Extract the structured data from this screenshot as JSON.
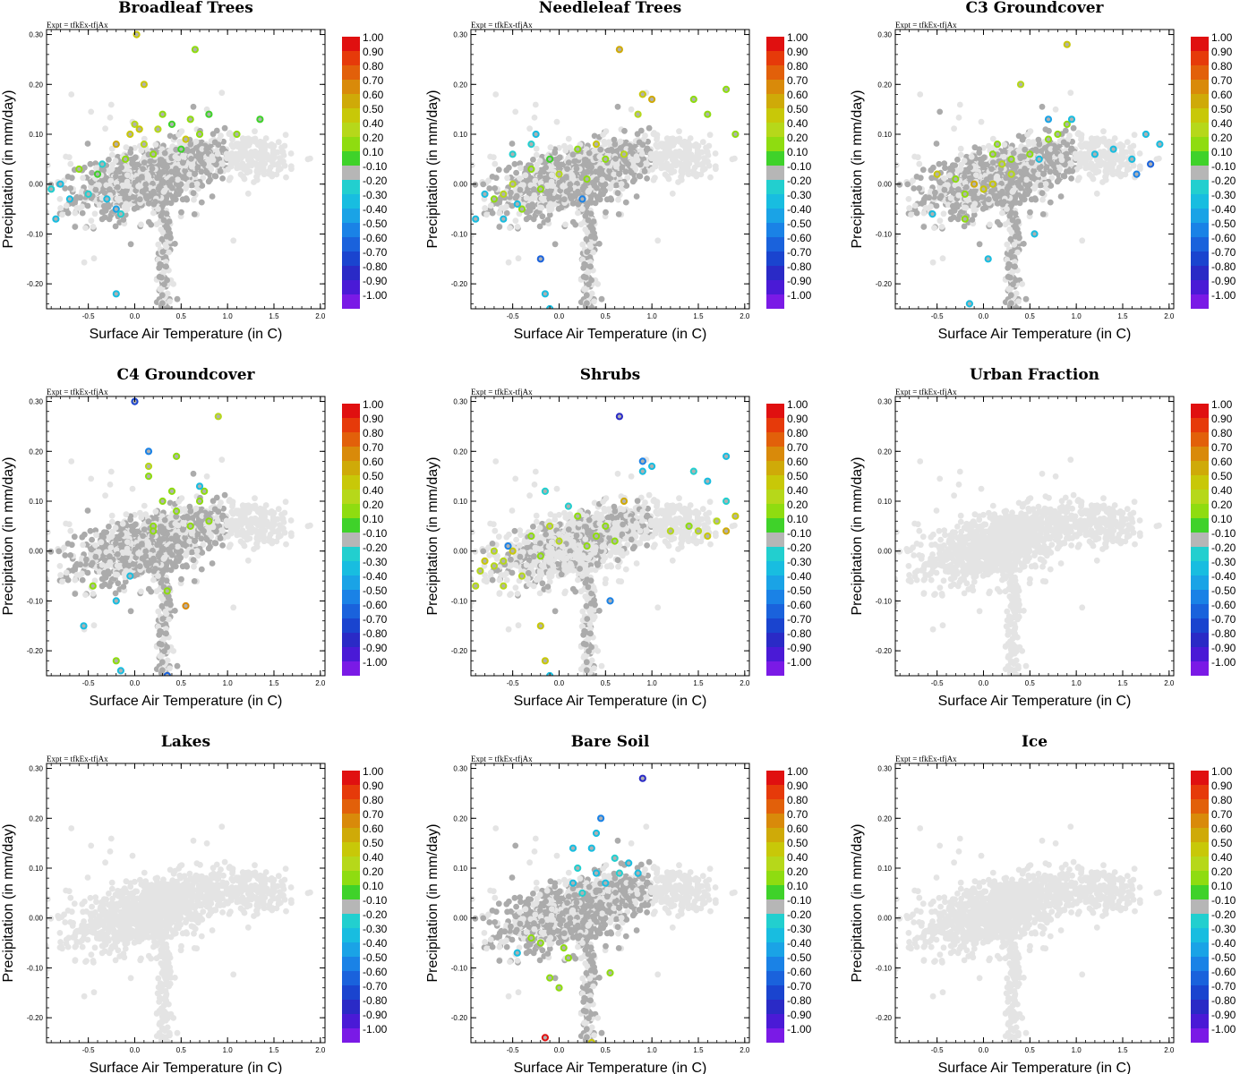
{
  "expt_label": "Expt = tfkEx-tfjAx",
  "colorbar": {
    "labels": [
      "1.00",
      "0.90",
      "0.80",
      "0.70",
      "0.60",
      "0.50",
      "0.40",
      "0.20",
      "0.10",
      "-0.10",
      "-0.20",
      "-0.30",
      "-0.40",
      "-0.50",
      "-0.60",
      "-0.70",
      "-0.80",
      "-0.90",
      "-1.00"
    ],
    "colors": [
      "#e01010",
      "#e63a0a",
      "#e2600a",
      "#d98a0a",
      "#cfaa08",
      "#c8c808",
      "#b6d81a",
      "#8fdc10",
      "#3fd22a",
      "#b6b6b6",
      "#22cfcf",
      "#18bde0",
      "#1aa3e6",
      "#1a82e6",
      "#1a62dc",
      "#1a44cf",
      "#2a2ac6",
      "#4a1ad6",
      "#7a1ae6"
    ]
  },
  "chart_data": [
    {
      "type": "scatter",
      "title": "Broadleaf Trees",
      "xlabel": "Surface Air Temperature (in C)",
      "ylabel": "Precipitation (in mm/day)",
      "xlim": [
        -0.95,
        2.05
      ],
      "ylim": [
        -0.25,
        0.31
      ],
      "xticks": [
        "-0.5",
        "0.0",
        "0.5",
        "1.0",
        "1.5",
        "2.0"
      ],
      "yticks": [
        "0.30",
        "0.20",
        "0.10",
        "0.00",
        "-0.10",
        "-0.20"
      ],
      "color_scale": [
        -1,
        1
      ],
      "points": [
        [
          0.02,
          0.3,
          0.5
        ],
        [
          0.65,
          0.27,
          0.15
        ],
        [
          0.1,
          0.2,
          0.5
        ],
        [
          0.0,
          0.12,
          0.4
        ],
        [
          0.05,
          0.11,
          0.45
        ],
        [
          -0.05,
          0.1,
          0.5
        ],
        [
          -0.2,
          0.08,
          0.55
        ],
        [
          0.1,
          0.08,
          0.3
        ],
        [
          0.3,
          0.14,
          0.15
        ],
        [
          0.4,
          0.12,
          0.12
        ],
        [
          0.6,
          0.13,
          0.15
        ],
        [
          0.7,
          0.1,
          0.2
        ],
        [
          0.8,
          0.14,
          0.12
        ],
        [
          1.1,
          0.1,
          0.15
        ],
        [
          1.35,
          0.13,
          0.12
        ],
        [
          -0.1,
          0.05,
          0.2
        ],
        [
          0.2,
          0.06,
          0.15
        ],
        [
          0.5,
          0.07,
          0.12
        ],
        [
          -0.6,
          0.03,
          0.15
        ],
        [
          -0.4,
          0.02,
          0.12
        ],
        [
          -0.8,
          0.0,
          -0.25
        ],
        [
          -0.9,
          -0.01,
          -0.2
        ],
        [
          -0.7,
          -0.03,
          -0.3
        ],
        [
          -0.5,
          -0.02,
          -0.2
        ],
        [
          -0.3,
          -0.03,
          -0.25
        ],
        [
          -0.2,
          -0.05,
          -0.35
        ],
        [
          -0.85,
          -0.07,
          -0.3
        ],
        [
          -0.15,
          -0.06,
          -0.2
        ],
        [
          -0.2,
          -0.22,
          -0.25
        ],
        [
          -0.35,
          0.04,
          -0.2
        ],
        [
          0.55,
          0.09,
          0.5
        ],
        [
          0.25,
          0.11,
          0.3
        ]
      ]
    },
    {
      "type": "scatter",
      "title": "Needleleaf Trees",
      "xlabel": "Surface Air Temperature (in C)",
      "ylabel": "Precipitation (in mm/day)",
      "xlim": [
        -0.95,
        2.05
      ],
      "ylim": [
        -0.25,
        0.31
      ],
      "xticks": [
        "-0.5",
        "0.0",
        "0.5",
        "1.0",
        "1.5",
        "2.0"
      ],
      "yticks": [
        "0.30",
        "0.20",
        "0.10",
        "0.00",
        "-0.10",
        "-0.20"
      ],
      "color_scale": [
        -1,
        1
      ],
      "points": [
        [
          0.65,
          0.27,
          0.6
        ],
        [
          0.9,
          0.18,
          0.5
        ],
        [
          1.0,
          0.17,
          0.6
        ],
        [
          0.85,
          0.14,
          0.4
        ],
        [
          1.45,
          0.17,
          0.15
        ],
        [
          1.8,
          0.19,
          0.15
        ],
        [
          1.6,
          0.14,
          0.15
        ],
        [
          1.9,
          0.1,
          0.15
        ],
        [
          0.2,
          0.07,
          0.15
        ],
        [
          0.5,
          0.05,
          0.2
        ],
        [
          -0.1,
          0.05,
          0.12
        ],
        [
          -0.3,
          0.03,
          0.2
        ],
        [
          -0.5,
          0.0,
          0.3
        ],
        [
          -0.7,
          -0.03,
          0.15
        ],
        [
          -0.2,
          -0.01,
          0.25
        ],
        [
          -0.4,
          -0.05,
          0.2
        ],
        [
          -0.6,
          -0.02,
          0.4
        ],
        [
          0.0,
          0.02,
          0.3
        ],
        [
          0.3,
          0.01,
          0.2
        ],
        [
          -0.8,
          -0.02,
          -0.25
        ],
        [
          -0.9,
          -0.07,
          -0.3
        ],
        [
          -0.6,
          -0.07,
          -0.25
        ],
        [
          -0.3,
          0.08,
          -0.2
        ],
        [
          -0.25,
          0.1,
          -0.25
        ],
        [
          -0.5,
          0.06,
          -0.2
        ],
        [
          -0.2,
          -0.15,
          -0.6
        ],
        [
          -0.15,
          -0.22,
          -0.3
        ],
        [
          -0.1,
          -0.25,
          -0.25
        ],
        [
          0.25,
          -0.03,
          -0.45
        ],
        [
          0.7,
          0.06,
          0.4
        ],
        [
          0.4,
          0.08,
          0.5
        ],
        [
          -0.45,
          -0.04,
          -0.3
        ]
      ]
    },
    {
      "type": "scatter",
      "title": "C3 Groundcover",
      "xlabel": "Surface Air Temperature (in C)",
      "ylabel": "Precipitation (in mm/day)",
      "xlim": [
        -0.95,
        2.05
      ],
      "ylim": [
        -0.25,
        0.31
      ],
      "xticks": [
        "-0.5",
        "0.0",
        "0.5",
        "1.0",
        "1.5",
        "2.0"
      ],
      "yticks": [
        "0.30",
        "0.20",
        "0.10",
        "0.00",
        "-0.10",
        "-0.20"
      ],
      "color_scale": [
        -1,
        1
      ],
      "points": [
        [
          0.9,
          0.28,
          0.45
        ],
        [
          0.4,
          0.2,
          0.4
        ],
        [
          0.15,
          0.08,
          0.15
        ],
        [
          0.1,
          0.06,
          0.2
        ],
        [
          0.3,
          0.05,
          0.15
        ],
        [
          0.5,
          0.06,
          0.15
        ],
        [
          0.7,
          0.09,
          0.2
        ],
        [
          0.8,
          0.1,
          0.15
        ],
        [
          0.9,
          0.12,
          0.2
        ],
        [
          0.2,
          0.04,
          0.3
        ],
        [
          -0.5,
          0.02,
          0.5
        ],
        [
          -0.1,
          0.0,
          0.55
        ],
        [
          0.0,
          -0.01,
          0.5
        ],
        [
          0.1,
          0.0,
          0.45
        ],
        [
          0.3,
          0.02,
          0.4
        ],
        [
          -0.2,
          -0.02,
          0.15
        ],
        [
          -0.3,
          0.01,
          0.15
        ],
        [
          -0.2,
          -0.07,
          0.15
        ],
        [
          0.05,
          -0.15,
          -0.3
        ],
        [
          0.55,
          -0.1,
          -0.25
        ],
        [
          -0.55,
          -0.06,
          -0.25
        ],
        [
          -0.15,
          -0.24,
          -0.25
        ],
        [
          1.8,
          0.04,
          -0.6
        ],
        [
          1.9,
          0.08,
          -0.3
        ],
        [
          1.6,
          0.05,
          -0.25
        ],
        [
          1.65,
          0.02,
          -0.45
        ],
        [
          1.4,
          0.07,
          -0.25
        ],
        [
          1.75,
          0.1,
          -0.25
        ],
        [
          0.7,
          0.13,
          -0.4
        ],
        [
          0.95,
          0.13,
          -0.3
        ],
        [
          1.2,
          0.06,
          -0.3
        ],
        [
          0.6,
          0.05,
          -0.25
        ]
      ]
    },
    {
      "type": "scatter",
      "title": "C4 Groundcover",
      "xlabel": "Surface Air Temperature (in C)",
      "ylabel": "Precipitation (in mm/day)",
      "xlim": [
        -0.95,
        2.05
      ],
      "ylim": [
        -0.25,
        0.31
      ],
      "xticks": [
        "-0.5",
        "0.0",
        "0.5",
        "1.0",
        "1.5",
        "2.0"
      ],
      "yticks": [
        "0.30",
        "0.20",
        "0.10",
        "0.00",
        "-0.10",
        "-0.20"
      ],
      "color_scale": [
        -1,
        1
      ],
      "points": [
        [
          0.0,
          0.3,
          -0.7
        ],
        [
          0.9,
          0.27,
          0.4
        ],
        [
          0.15,
          0.2,
          -0.5
        ],
        [
          0.45,
          0.19,
          0.15
        ],
        [
          0.15,
          0.17,
          0.3
        ],
        [
          0.15,
          0.15,
          0.25
        ],
        [
          0.3,
          0.1,
          0.15
        ],
        [
          0.4,
          0.12,
          0.2
        ],
        [
          0.75,
          0.12,
          0.15
        ],
        [
          0.7,
          0.1,
          0.15
        ],
        [
          0.8,
          0.06,
          0.15
        ],
        [
          0.2,
          0.05,
          0.15
        ],
        [
          0.45,
          0.08,
          0.15
        ],
        [
          0.2,
          0.04,
          0.2
        ],
        [
          0.6,
          0.05,
          0.15
        ],
        [
          0.7,
          0.13,
          -0.25
        ],
        [
          0.55,
          -0.11,
          0.65
        ],
        [
          0.35,
          -0.08,
          0.15
        ],
        [
          -0.2,
          -0.1,
          -0.3
        ],
        [
          -0.05,
          -0.05,
          -0.25
        ],
        [
          -0.45,
          -0.07,
          0.15
        ],
        [
          -0.2,
          -0.22,
          0.15
        ],
        [
          -0.15,
          -0.24,
          -0.25
        ],
        [
          0.35,
          -0.25,
          -0.6
        ],
        [
          -0.55,
          -0.15,
          -0.3
        ]
      ]
    },
    {
      "type": "scatter",
      "title": "Shrubs",
      "xlabel": "Surface Air Temperature (in C)",
      "ylabel": "Precipitation (in mm/day)",
      "xlim": [
        -0.95,
        2.05
      ],
      "ylim": [
        -0.25,
        0.31
      ],
      "xticks": [
        "-0.5",
        "0.0",
        "0.5",
        "1.0",
        "1.5",
        "2.0"
      ],
      "yticks": [
        "0.30",
        "0.20",
        "0.10",
        "0.00",
        "-0.10",
        "-0.20"
      ],
      "color_scale": [
        -1,
        1
      ],
      "points": [
        [
          0.65,
          0.27,
          -0.75
        ],
        [
          0.9,
          0.18,
          -0.5
        ],
        [
          0.9,
          0.16,
          -0.25
        ],
        [
          1.0,
          0.17,
          -0.3
        ],
        [
          1.45,
          0.16,
          -0.2
        ],
        [
          1.8,
          0.19,
          -0.25
        ],
        [
          1.6,
          0.14,
          -0.25
        ],
        [
          1.8,
          0.1,
          -0.2
        ],
        [
          0.2,
          0.07,
          0.15
        ],
        [
          0.5,
          0.05,
          0.2
        ],
        [
          -0.1,
          0.05,
          0.3
        ],
        [
          -0.3,
          0.03,
          0.2
        ],
        [
          -0.5,
          0.0,
          0.45
        ],
        [
          -0.7,
          -0.03,
          0.35
        ],
        [
          -0.2,
          -0.01,
          0.25
        ],
        [
          -0.4,
          -0.05,
          0.3
        ],
        [
          -0.6,
          -0.02,
          0.4
        ],
        [
          0.0,
          0.02,
          0.3
        ],
        [
          0.3,
          0.01,
          0.2
        ],
        [
          -0.8,
          -0.02,
          0.45
        ],
        [
          -0.9,
          -0.07,
          0.4
        ],
        [
          -0.6,
          -0.07,
          0.4
        ],
        [
          -0.85,
          -0.04,
          0.35
        ],
        [
          -0.7,
          0.0,
          0.4
        ],
        [
          -0.55,
          0.01,
          -0.5
        ],
        [
          -0.2,
          -0.15,
          0.45
        ],
        [
          -0.15,
          -0.22,
          0.5
        ],
        [
          -0.1,
          -0.25,
          -0.25
        ],
        [
          1.5,
          0.04,
          0.4
        ],
        [
          1.6,
          0.03,
          0.5
        ],
        [
          1.8,
          0.04,
          0.55
        ],
        [
          1.9,
          0.07,
          0.5
        ],
        [
          1.7,
          0.06,
          0.4
        ],
        [
          1.4,
          0.05,
          0.2
        ],
        [
          1.2,
          0.04,
          0.3
        ],
        [
          0.7,
          0.1,
          0.6
        ],
        [
          0.55,
          -0.1,
          -0.5
        ],
        [
          -0.15,
          0.12,
          -0.2
        ],
        [
          0.1,
          0.09,
          -0.2
        ],
        [
          0.6,
          0.02,
          0.15
        ],
        [
          0.4,
          0.03,
          0.2
        ]
      ]
    },
    {
      "type": "scatter",
      "title": "Urban Fraction",
      "xlabel": "Surface Air Temperature (in C)",
      "ylabel": "Precipitation (in mm/day)",
      "xlim": [
        -0.95,
        2.05
      ],
      "ylim": [
        -0.25,
        0.31
      ],
      "xticks": [
        "-0.5",
        "0.0",
        "0.5",
        "1.0",
        "1.5",
        "2.0"
      ],
      "yticks": [
        "0.30",
        "0.20",
        "0.10",
        "0.00",
        "-0.10",
        "-0.20"
      ],
      "color_scale": [
        -1,
        1
      ],
      "points": []
    },
    {
      "type": "scatter",
      "title": "Lakes",
      "xlabel": "Surface Air Temperature (in C)",
      "ylabel": "Precipitation (in mm/day)",
      "xlim": [
        -0.95,
        2.05
      ],
      "ylim": [
        -0.25,
        0.31
      ],
      "xticks": [
        "-0.5",
        "0.0",
        "0.5",
        "1.0",
        "1.5",
        "2.0"
      ],
      "yticks": [
        "0.30",
        "0.20",
        "0.10",
        "0.00",
        "-0.10",
        "-0.20"
      ],
      "color_scale": [
        -1,
        1
      ],
      "points": []
    },
    {
      "type": "scatter",
      "title": "Bare Soil",
      "xlabel": "Surface Air Temperature (in C)",
      "ylabel": "Precipitation (in mm/day)",
      "xlim": [
        -0.95,
        2.05
      ],
      "ylim": [
        -0.25,
        0.31
      ],
      "xticks": [
        "-0.5",
        "0.0",
        "0.5",
        "1.0",
        "1.5",
        "2.0"
      ],
      "yticks": [
        "0.30",
        "0.20",
        "0.10",
        "0.00",
        "-0.10",
        "-0.20"
      ],
      "color_scale": [
        -1,
        1
      ],
      "points": [
        [
          0.9,
          0.28,
          -0.8
        ],
        [
          0.45,
          0.2,
          -0.5
        ],
        [
          0.4,
          0.17,
          -0.25
        ],
        [
          0.15,
          0.14,
          -0.3
        ],
        [
          0.35,
          0.14,
          -0.25
        ],
        [
          0.6,
          0.12,
          -0.2
        ],
        [
          0.75,
          0.11,
          -0.3
        ],
        [
          0.2,
          0.1,
          -0.2
        ],
        [
          0.4,
          0.09,
          -0.25
        ],
        [
          0.65,
          0.09,
          -0.2
        ],
        [
          0.85,
          0.09,
          -0.25
        ],
        [
          0.15,
          0.07,
          -0.25
        ],
        [
          0.5,
          0.07,
          -0.3
        ],
        [
          0.25,
          0.05,
          -0.2
        ],
        [
          -0.3,
          -0.04,
          0.15
        ],
        [
          -0.2,
          -0.05,
          0.2
        ],
        [
          0.05,
          -0.06,
          0.15
        ],
        [
          0.1,
          -0.08,
          0.15
        ],
        [
          0.55,
          -0.11,
          0.15
        ],
        [
          -0.1,
          -0.12,
          0.2
        ],
        [
          0.0,
          -0.14,
          0.2
        ],
        [
          -0.15,
          -0.24,
          0.95
        ],
        [
          0.35,
          -0.25,
          0.45
        ],
        [
          -0.45,
          -0.07,
          -0.25
        ]
      ]
    },
    {
      "type": "scatter",
      "title": "Ice",
      "xlabel": "Surface Air Temperature (in C)",
      "ylabel": "Precipitation (in mm/day)",
      "xlim": [
        -0.95,
        2.05
      ],
      "ylim": [
        -0.25,
        0.31
      ],
      "xticks": [
        "-0.5",
        "0.0",
        "0.5",
        "1.0",
        "1.5",
        "2.0"
      ],
      "yticks": [
        "0.30",
        "0.20",
        "0.10",
        "0.00",
        "-0.10",
        "-0.20"
      ],
      "color_scale": [
        -1,
        1
      ],
      "points": []
    }
  ]
}
